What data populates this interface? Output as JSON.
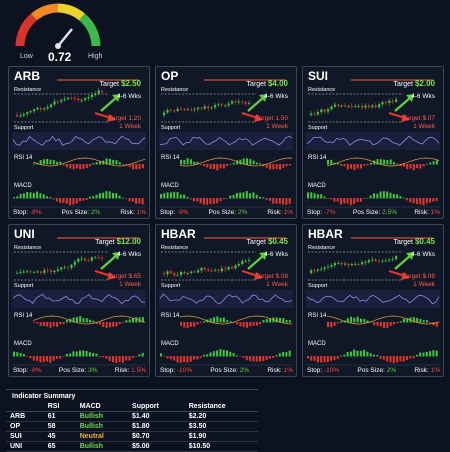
{
  "gauge": {
    "low_label": "Low",
    "high_label": "High",
    "value": "0.72",
    "level": 0.72
  },
  "panels": [
    {
      "symbol": "ARB",
      "target_prefix": "Target",
      "target": "$2.50",
      "target_window": "4-6 Wks",
      "target2": "Target 1.20",
      "target2_window": "1 Week",
      "resistance_label": "Resistance",
      "support_label": "Support",
      "rsi_label": "RSI 14",
      "macd_label": "MACD",
      "stop_label": "Stop:",
      "stop": "-8%",
      "pos_label": "Pos Size:",
      "pos": "2%",
      "risk_label": "Risk:",
      "risk": "1%"
    },
    {
      "symbol": "OP",
      "target_prefix": "Target",
      "target": "$4.00",
      "target_window": "4-6 Wks",
      "target2": "Target 1.50",
      "target2_window": "1 Week",
      "resistance_label": "Resistance",
      "support_label": "Support",
      "rsi_label": "RSI 14",
      "macd_label": "MACD",
      "stop_label": "Stop:",
      "stop": "-9%",
      "pos_label": "Pos Size:",
      "pos": "2%",
      "risk_label": "Risk:",
      "risk": "1%"
    },
    {
      "symbol": "SUI",
      "target_prefix": "Target",
      "target": "$2.00",
      "target_window": "4-6 Wks",
      "target2": "Target $.07",
      "target2_window": "1 Week",
      "resistance_label": "Resistance",
      "support_label": "Support",
      "rsi_label": "RSI 14",
      "macd_label": "MACD",
      "stop_label": "Stop:",
      "stop": "-7%",
      "pos_label": "Pos Size:",
      "pos": "2.5%",
      "risk_label": "Risk:",
      "risk": "1%"
    },
    {
      "symbol": "UNI",
      "target_prefix": "Target",
      "target": "$12.00",
      "target_window": "4-6 Wks",
      "target2": "Target $.65",
      "target2_window": "1 Week",
      "resistance_label": "Resistance",
      "support_label": "Support",
      "rsi_label": "RSI 14",
      "macd_label": "MACD",
      "stop_label": "Stop:",
      "stop": "-8%",
      "pos_label": "Pos Size:",
      "pos": "3%",
      "risk_label": "Risk:",
      "risk": "1.5%"
    },
    {
      "symbol": "HBAR",
      "target_prefix": "Target",
      "target": "$0.45",
      "target_window": "4-6 Wks",
      "target2": "Target $.08",
      "target2_window": "1 Week",
      "resistance_label": "Resistance",
      "support_label": "Support",
      "rsi_label": "RSI 14",
      "macd_label": "MACD",
      "stop_label": "Stop:",
      "stop": "-10%",
      "pos_label": "Pos Size:",
      "pos": "2%",
      "risk_label": "Risk:",
      "risk": "1%"
    },
    {
      "symbol": "HBAR",
      "target_prefix": "Target",
      "target": "$0.45",
      "target_window": "4-6 Wks",
      "target2": "Target $.08",
      "target2_window": "1 Week",
      "resistance_label": "Resistance",
      "support_label": "Support",
      "rsi_label": "RSI 14",
      "macd_label": "MACD",
      "stop_label": "Stop:",
      "stop": "-10%",
      "pos_label": "Pos Size:",
      "pos": "2%",
      "risk_label": "Risk:",
      "risk": "1%"
    }
  ],
  "summary": {
    "title": "Indicator Summary",
    "headers": [
      "",
      "RSI",
      "MACD",
      "Support",
      "Resistance"
    ],
    "rows": [
      {
        "asset": "ARB",
        "rsi": "61",
        "macd": "Bullish",
        "support": "$1.40",
        "resistance": "$2.20"
      },
      {
        "asset": "OP",
        "rsi": "58",
        "macd": "Bullish",
        "support": "$1.80",
        "resistance": "$3.50"
      },
      {
        "asset": "SUI",
        "rsi": "45",
        "macd": "Neutral",
        "support": "$0.70",
        "resistance": "$1.90"
      },
      {
        "asset": "UNI",
        "rsi": "65",
        "macd": "Bullish",
        "support": "$5.00",
        "resistance": "$10.50"
      }
    ]
  },
  "colors": {
    "up": "#3ec83a",
    "down": "#e8352b",
    "rsi_line": "#9a86e8",
    "accent": "#ff5a3a"
  },
  "chart_data": {
    "type": "bar",
    "note_source": "candlestick illustration panels"
  }
}
